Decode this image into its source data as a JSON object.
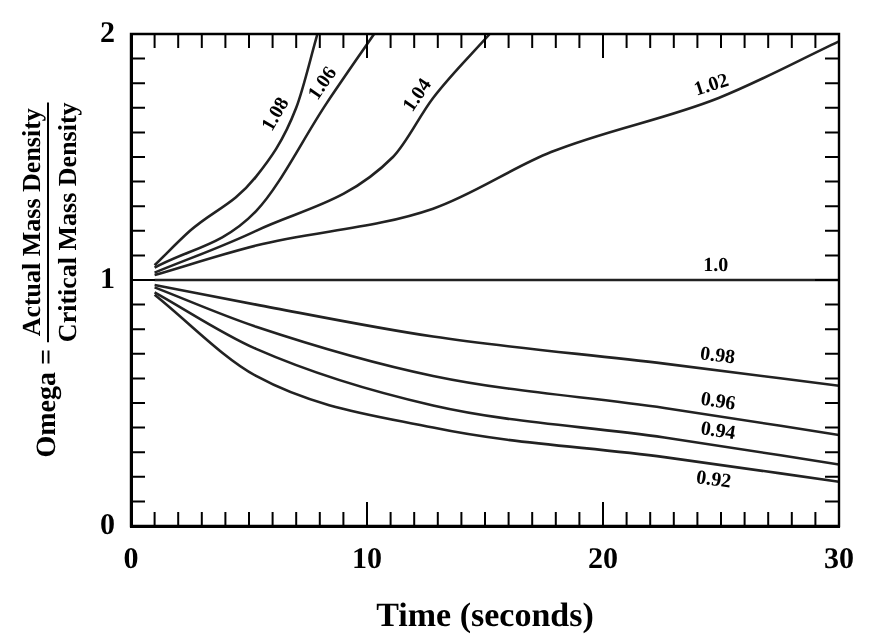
{
  "chart_data": {
    "type": "line",
    "xlabel": "Time (seconds)",
    "ylabel": "Omega = Actual Mass Density\nCritical Mass Density",
    "xlim": [
      0,
      30
    ],
    "ylim": [
      0,
      2
    ],
    "xticks": [
      0,
      {
        "value": 1,
        "label": null
      },
      {
        "value": 2,
        "label": null
      },
      {
        "value": 3,
        "label": null
      },
      {
        "value": 4,
        "label": null
      },
      {
        "value": 5,
        "label": null
      },
      {
        "value": 6,
        "label": null
      },
      {
        "value": 7,
        "label": null
      },
      {
        "value": 8,
        "label": null
      },
      {
        "value": 9,
        "label": null
      },
      10,
      {
        "value": 11,
        "label": null
      },
      {
        "value": 12,
        "label": null
      },
      {
        "value": 13,
        "label": null
      },
      {
        "value": 14,
        "label": null
      },
      {
        "value": 15,
        "label": null
      },
      {
        "value": 16,
        "label": null
      },
      {
        "value": 17,
        "label": null
      },
      {
        "value": 18,
        "label": null
      },
      {
        "value": 19,
        "label": null
      },
      20,
      {
        "value": 21,
        "label": null
      },
      {
        "value": 22,
        "label": null
      },
      {
        "value": 23,
        "label": null
      },
      {
        "value": 24,
        "label": null
      },
      {
        "value": 25,
        "label": null
      },
      {
        "value": 26,
        "label": null
      },
      {
        "value": 27,
        "label": null
      },
      {
        "value": 28,
        "label": null
      },
      {
        "value": 29,
        "label": null
      },
      30
    ],
    "yticks": [
      0,
      {
        "value": 0.1,
        "label": null
      },
      {
        "value": 0.2,
        "label": null
      },
      {
        "value": 0.3,
        "label": null
      },
      {
        "value": 0.4,
        "label": null
      },
      {
        "value": 0.5,
        "label": null
      },
      {
        "value": 0.6,
        "label": null
      },
      {
        "value": 0.7,
        "label": null
      },
      {
        "value": 0.8,
        "label": null
      },
      {
        "value": 0.9,
        "label": null
      },
      1,
      {
        "value": 1.1,
        "label": null
      },
      {
        "value": 1.2,
        "label": null
      },
      {
        "value": 1.3,
        "label": null
      },
      {
        "value": 1.4,
        "label": null
      },
      {
        "value": 1.5,
        "label": null
      },
      {
        "value": 1.6,
        "label": null
      },
      {
        "value": 1.7,
        "label": null
      },
      {
        "value": 1.8,
        "label": null
      },
      {
        "value": 1.9,
        "label": null
      },
      2
    ],
    "grid": false,
    "legend": false,
    "marker": "none",
    "line_style": "solid",
    "series": [
      {
        "name": "1.08",
        "color": "#222222",
        "x": [
          1,
          2.5,
          5.3,
          7,
          7.9
        ],
        "values": [
          1.06,
          1.2,
          1.42,
          1.7,
          2
        ]
      },
      {
        "name": "1.06",
        "color": "#222222",
        "x": [
          1,
          5.3,
          8.3,
          10.3
        ],
        "values": [
          1.05,
          1.28,
          1.72,
          2
        ]
      },
      {
        "name": "1.04",
        "color": "#222222",
        "x": [
          1,
          5.3,
          11.1,
          12.8,
          15.2
        ],
        "values": [
          1.03,
          1.2,
          1.5,
          1.74,
          2
        ]
      },
      {
        "name": "1.02",
        "color": "#222222",
        "x": [
          1,
          5.3,
          12.8,
          17.8,
          24.9,
          30
        ],
        "values": [
          1.02,
          1.14,
          1.29,
          1.52,
          1.74,
          1.97
        ]
      },
      {
        "name": "1.0",
        "color": "#222222",
        "x": [
          1,
          30
        ],
        "values": [
          1,
          1
        ]
      },
      {
        "name": "0.98",
        "color": "#222222",
        "x": [
          1,
          5.3,
          12.8,
          22.6,
          30
        ],
        "values": [
          0.98,
          0.9,
          0.77,
          0.66,
          0.57
        ]
      },
      {
        "name": "0.96",
        "color": "#222222",
        "x": [
          1,
          5.3,
          12.8,
          22.6,
          30
        ],
        "values": [
          0.97,
          0.81,
          0.61,
          0.48,
          0.37
        ]
      },
      {
        "name": "0.94",
        "color": "#222222",
        "x": [
          1,
          5.3,
          12.8,
          22.6,
          30
        ],
        "values": [
          0.95,
          0.72,
          0.49,
          0.36,
          0.25
        ]
      },
      {
        "name": "0.92",
        "color": "#222222",
        "x": [
          1,
          5.3,
          12.8,
          22.6,
          30
        ],
        "values": [
          0.94,
          0.61,
          0.4,
          0.28,
          0.18
        ]
      }
    ]
  }
}
